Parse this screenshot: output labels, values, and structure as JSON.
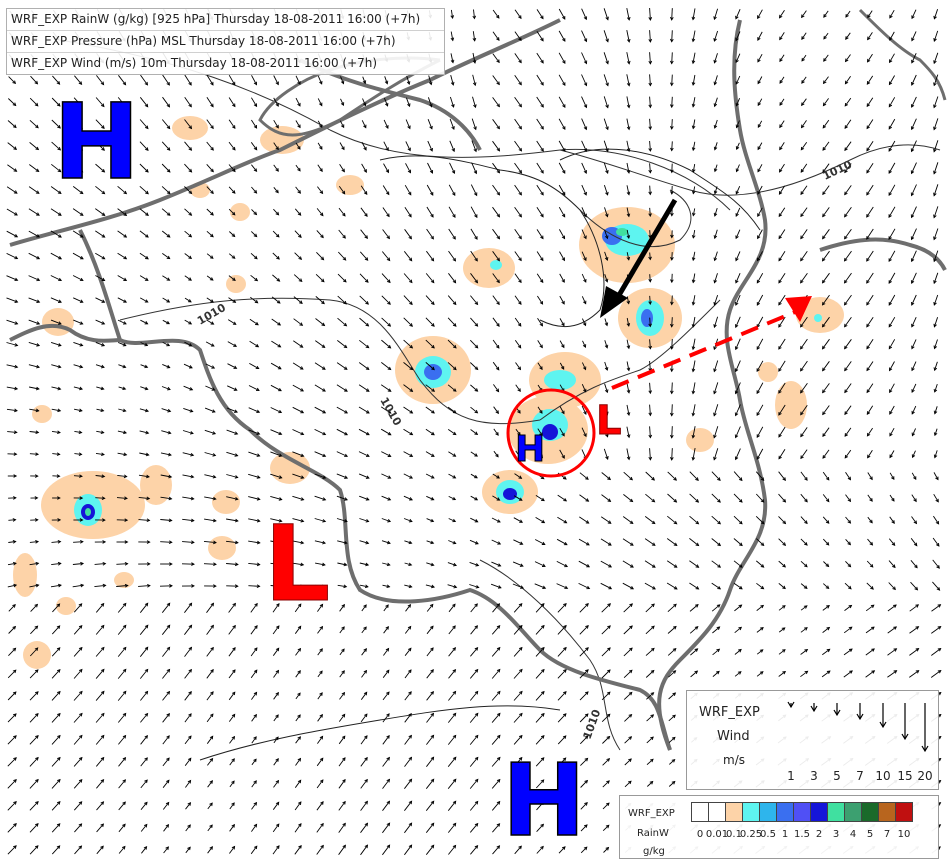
{
  "map": {
    "legend_lines": [
      "WRF_EXP RainW (g/kg) [925 hPa] Thursday 18-08-2011 16:00 (+7h)",
      "WRF_EXP Pressure (hPa) MSL Thursday 18-08-2011 16:00 (+7h)",
      "WRF_EXP Wind (m/s) 10m Thursday 18-08-2011 16:00 (+7h)"
    ],
    "pressure_centers": [
      {
        "label": "H",
        "color": "#0000ff"
      },
      {
        "label": "L",
        "color": "#ff0000"
      },
      {
        "label": "H",
        "color": "#0000ff"
      },
      {
        "label": "L",
        "color": "#ff0000"
      },
      {
        "label": "H",
        "color": "#0000ff"
      }
    ],
    "isobar_labels": [
      "1010",
      "1010",
      "1010",
      "1010"
    ],
    "annotations": {
      "black_arrow_color": "#000000",
      "red_dashed_arrow_color": "#ff0000",
      "circle_color": "#ff0000"
    }
  },
  "wind_legend": {
    "model": "WRF_EXP",
    "name": "Wind",
    "unit": "m/s",
    "scale": [
      "1",
      "3",
      "5",
      "7",
      "10",
      "15",
      "20"
    ]
  },
  "rain_legend": {
    "model": "WRF_EXP",
    "name": "RainW",
    "unit": "g/kg",
    "ticks": [
      "0",
      "0.01",
      "0.1",
      "0.25",
      "0.5",
      "1",
      "1.5",
      "2",
      "3",
      "4",
      "5",
      "7",
      "10"
    ],
    "colors": [
      "#ffffff",
      "#ffffff",
      "#fdd3a8",
      "#5ef4f0",
      "#2eb5ec",
      "#3a6ff0",
      "#5050f5",
      "#1515d8",
      "#40e0a0",
      "#3ca070",
      "#1a6a2a",
      "#b8651e",
      "#c01010"
    ]
  }
}
